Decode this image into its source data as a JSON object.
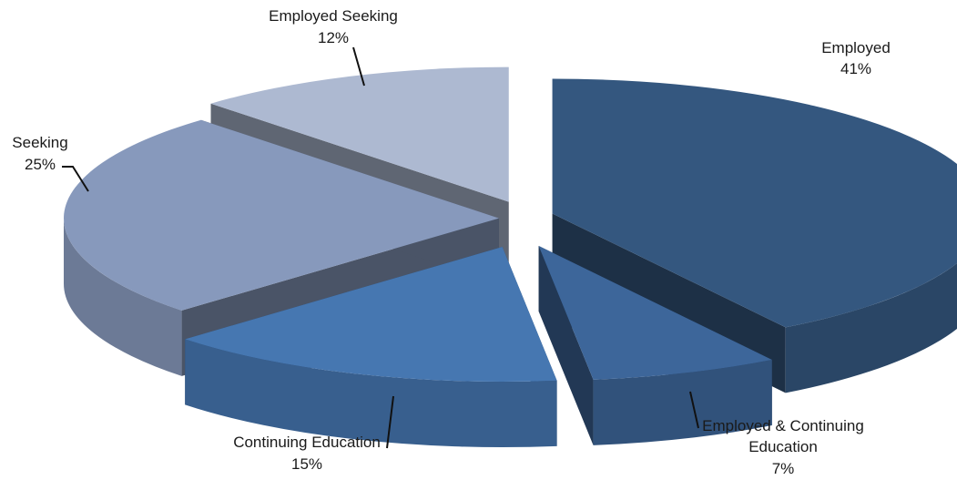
{
  "chart_data": {
    "type": "pie",
    "title": "",
    "slices": [
      {
        "name": "Employed",
        "value": 41,
        "value_label": "41%",
        "color": "#34577f"
      },
      {
        "name": "Employed & Continuing Education",
        "value": 7,
        "value_label": "7%",
        "color": "#3d669a"
      },
      {
        "name": "Continuing Education",
        "value": 15,
        "value_label": "15%",
        "color": "#4677b1"
      },
      {
        "name": "Seeking",
        "value": 25,
        "value_label": "25%",
        "color": "#8799bc"
      },
      {
        "name": "Employed Seeking",
        "value": 12,
        "value_label": "12%",
        "color": "#adb9d1"
      }
    ],
    "style": "3d-exploded"
  }
}
